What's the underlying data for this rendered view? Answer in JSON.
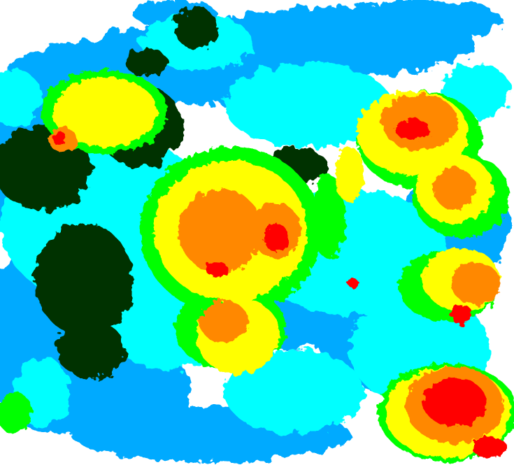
{
  "radar": {
    "palette": {
      "background": "#ffffff",
      "light_blue": "#00aaff",
      "cyan": "#00ffff",
      "dark_green": "#003300",
      "green": "#00ff00",
      "yellow": "#ffff00",
      "orange": "#ff8800",
      "red": "#ff0000"
    }
  }
}
